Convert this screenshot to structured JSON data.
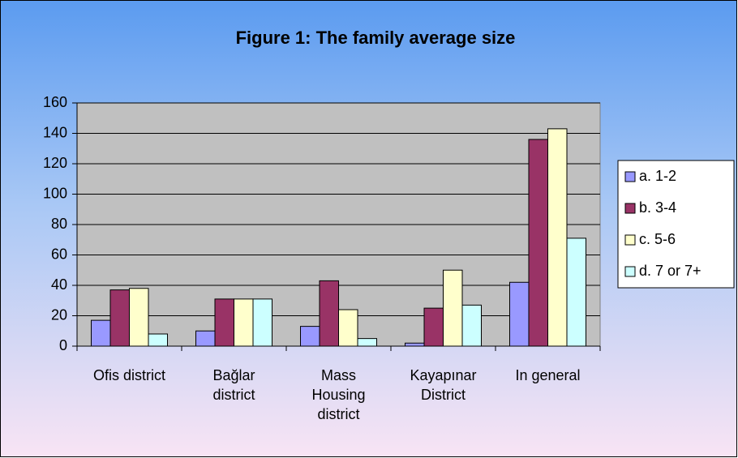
{
  "chart_data": {
    "type": "bar",
    "title": "Figure 1: The family average size",
    "categories": [
      "Ofis district",
      "Bağlar district",
      "Mass Housing district",
      "Kayapınar District",
      "In general"
    ],
    "series": [
      {
        "name": "a. 1-2",
        "color": "#9999ff",
        "values": [
          17,
          10,
          13,
          2,
          42
        ]
      },
      {
        "name": "b. 3-4",
        "color": "#993366",
        "values": [
          37,
          31,
          43,
          25,
          136
        ]
      },
      {
        "name": "c. 5-6",
        "color": "#ffffcc",
        "values": [
          38,
          31,
          24,
          50,
          143
        ]
      },
      {
        "name": "d. 7 or 7+",
        "color": "#ccffff",
        "values": [
          8,
          31,
          5,
          27,
          71
        ]
      }
    ],
    "ylim": [
      0,
      160
    ],
    "yticks": [
      0,
      20,
      40,
      60,
      80,
      100,
      120,
      140,
      160
    ],
    "grid": true,
    "legend": "right"
  }
}
